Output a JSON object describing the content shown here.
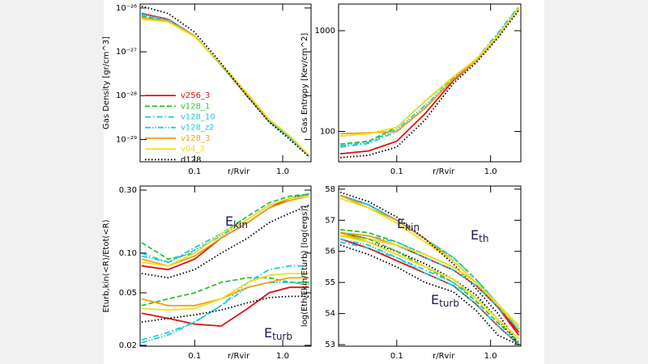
{
  "chart_data": [
    {
      "type": "line",
      "xlabel": "r/Rvir",
      "ylabel": "Gas Density [gr/cm^3]",
      "log_x": true,
      "log_y": true,
      "xlim": [
        0.024,
        2.1
      ],
      "xticks": [
        0.1,
        {
          "value": 1,
          "label": "1.0"
        }
      ],
      "ylim": [
        3.1e-30,
        1.23e-26
      ],
      "yticks": [
        {
          "value": 1e-26,
          "label": "10⁻²⁶"
        },
        {
          "value": 1e-27,
          "label": "10⁻²⁷"
        },
        {
          "value": 1e-28,
          "label": "10⁻²⁸"
        },
        {
          "value": 1e-29,
          "label": "10⁻²⁹"
        }
      ],
      "legend": "center-left",
      "x": [
        0.025,
        0.05,
        0.1,
        0.2,
        0.4,
        0.7,
        1.2,
        2.0
      ],
      "series": [
        {
          "name": "v256_3",
          "color": "#e01010",
          "dash": "solid",
          "values": [
            7.5e-27,
            5.5e-27,
            2.3e-27,
            5e-28,
            9.5e-29,
            2.6e-29,
            1.1e-29,
            4.2e-30
          ]
        },
        {
          "name": "v128_1",
          "color": "#30c030",
          "dash": "dashed",
          "values": [
            6.5e-27,
            5.2e-27,
            2.3e-27,
            5e-28,
            1e-28,
            2.8e-29,
            1.1e-29,
            4.2e-30
          ]
        },
        {
          "name": "v128_10",
          "color": "#20c8e0",
          "dash": "dashdot",
          "values": [
            7e-27,
            5.3e-27,
            2.3e-27,
            5e-28,
            9.5e-29,
            2.7e-29,
            1.1e-29,
            4.1e-30
          ]
        },
        {
          "name": "v128_z2",
          "color": "#20c8e0",
          "dash": "dashdotdot",
          "values": [
            7.2e-27,
            5.4e-27,
            2.3e-27,
            5e-28,
            9.5e-29,
            2.6e-29,
            1.1e-29,
            4.2e-30
          ]
        },
        {
          "name": "v128_3",
          "color": "#f0a010",
          "dash": "solid",
          "values": [
            6e-27,
            5e-27,
            2.3e-27,
            5.2e-28,
            1e-28,
            2.8e-29,
            1.2e-29,
            4.3e-30
          ]
        },
        {
          "name": "v64_3",
          "color": "#f0e020",
          "dash": "solid",
          "values": [
            5.5e-27,
            4.8e-27,
            2.2e-27,
            5.2e-28,
            1.1e-28,
            2.9e-29,
            1.2e-29,
            4.3e-30
          ]
        },
        {
          "name": "d128",
          "color": "#000000",
          "dash": "dotted",
          "values": [
            1.1e-26,
            7.5e-27,
            2.8e-27,
            5.5e-28,
            9.5e-29,
            2.5e-29,
            1e-29,
            4e-30
          ]
        }
      ]
    },
    {
      "type": "line",
      "xlabel": "r/Rvir",
      "ylabel": "Gas Entropy [Kev/cm^2]",
      "log_x": true,
      "log_y": true,
      "xlim": [
        0.024,
        2.1
      ],
      "xticks": [
        0.1,
        {
          "value": 1,
          "label": "1.0"
        }
      ],
      "ylim": [
        50,
        1840
      ],
      "yticks": [
        100,
        1000
      ],
      "x": [
        0.025,
        0.05,
        0.1,
        0.2,
        0.4,
        0.7,
        1.2,
        2.0
      ],
      "series": [
        {
          "color": "#e01010",
          "dash": "solid",
          "values": [
            60,
            64,
            80,
            150,
            320,
            500,
            880,
            1700
          ]
        },
        {
          "color": "#30c030",
          "dash": "dashed",
          "values": [
            75,
            80,
            110,
            200,
            340,
            510,
            900,
            1650
          ]
        },
        {
          "color": "#20c8e0",
          "dash": "dashdot",
          "values": [
            70,
            76,
            100,
            170,
            330,
            520,
            950,
            1750
          ]
        },
        {
          "color": "#20c8e0",
          "dash": "dashdotdot",
          "values": [
            72,
            78,
            105,
            180,
            330,
            510,
            920,
            1700
          ]
        },
        {
          "color": "#f0a010",
          "dash": "solid",
          "values": [
            95,
            97,
            100,
            170,
            330,
            500,
            880,
            1700
          ]
        },
        {
          "color": "#f0e020",
          "dash": "solid",
          "values": [
            90,
            95,
            110,
            200,
            350,
            520,
            900,
            1680
          ]
        },
        {
          "color": "#000000",
          "dash": "dotted",
          "values": [
            55,
            58,
            70,
            130,
            300,
            480,
            850,
            1600
          ]
        }
      ]
    },
    {
      "type": "line",
      "xlabel": "r/Rvir",
      "ylabel": "Eturb,kin(<R)/Etot(<R)",
      "log_x": true,
      "log_y": true,
      "xlim": [
        0.024,
        2.1
      ],
      "xticks": [
        0.1,
        {
          "value": 1,
          "label": "1.0"
        }
      ],
      "ylim": [
        0.0197,
        0.322
      ],
      "yticks": [
        {
          "value": 0.3,
          "label": "0.30"
        },
        {
          "value": 0.1,
          "label": "0.10"
        },
        0.05,
        0.02
      ],
      "annotations": [
        {
          "text": "E",
          "sub": "kin"
        },
        {
          "text": "E",
          "sub": "turb"
        }
      ],
      "x": [
        0.025,
        0.05,
        0.1,
        0.2,
        0.4,
        0.7,
        1.2,
        2.0
      ],
      "series": [
        {
          "color": "#e01010",
          "dash": "solid",
          "values": [
            0.08,
            0.075,
            0.09,
            0.13,
            0.17,
            0.22,
            0.26,
            0.28
          ]
        },
        {
          "color": "#30c030",
          "dash": "dashed",
          "values": [
            0.12,
            0.09,
            0.1,
            0.14,
            0.19,
            0.24,
            0.27,
            0.28
          ]
        },
        {
          "color": "#20c8e0",
          "dash": "dashdot",
          "values": [
            0.1,
            0.085,
            0.11,
            0.14,
            0.18,
            0.23,
            0.26,
            0.28
          ]
        },
        {
          "color": "#20c8e0",
          "dash": "dashdotdot",
          "values": [
            0.095,
            0.085,
            0.105,
            0.135,
            0.18,
            0.23,
            0.26,
            0.27
          ]
        },
        {
          "color": "#f0a010",
          "dash": "solid",
          "values": [
            0.09,
            0.08,
            0.095,
            0.13,
            0.17,
            0.22,
            0.25,
            0.27
          ]
        },
        {
          "color": "#f0e020",
          "dash": "solid",
          "values": [
            0.085,
            0.08,
            0.1,
            0.14,
            0.18,
            0.23,
            0.26,
            0.27
          ]
        },
        {
          "color": "#000000",
          "dash": "dotted",
          "values": [
            0.07,
            0.065,
            0.075,
            0.1,
            0.13,
            0.17,
            0.2,
            0.23
          ]
        },
        {
          "color": "#e01010",
          "dash": "solid",
          "values": [
            0.035,
            0.032,
            0.029,
            0.028,
            0.038,
            0.05,
            0.055,
            0.055
          ]
        },
        {
          "color": "#30c030",
          "dash": "dashed",
          "values": [
            0.04,
            0.045,
            0.05,
            0.06,
            0.065,
            0.065,
            0.06,
            0.06
          ]
        },
        {
          "color": "#20c8e0",
          "dash": "dashdot",
          "values": [
            0.022,
            0.025,
            0.03,
            0.04,
            0.06,
            0.075,
            0.08,
            0.08
          ]
        },
        {
          "color": "#20c8e0",
          "dash": "dashdotdot",
          "values": [
            0.021,
            0.024,
            0.03,
            0.04,
            0.055,
            0.06,
            0.06,
            0.058
          ]
        },
        {
          "color": "#f0a010",
          "dash": "solid",
          "values": [
            0.045,
            0.04,
            0.04,
            0.045,
            0.055,
            0.06,
            0.065,
            0.065
          ]
        },
        {
          "color": "#f0e020",
          "dash": "solid",
          "values": [
            0.038,
            0.037,
            0.038,
            0.045,
            0.06,
            0.068,
            0.07,
            0.07
          ]
        },
        {
          "color": "#000000",
          "dash": "dotted",
          "values": [
            0.03,
            0.032,
            0.034,
            0.037,
            0.042,
            0.046,
            0.047,
            0.047
          ]
        }
      ]
    },
    {
      "type": "line",
      "xlabel": "r/Rvir",
      "ylabel": "log(Eth/Ekin/Eturb) [log(ergs)]",
      "log_x": true,
      "log_y": false,
      "xlim": [
        0.024,
        2.1
      ],
      "xticks": [
        0.1,
        {
          "value": 1,
          "label": "1.0"
        }
      ],
      "ylim": [
        52.95,
        58.1
      ],
      "yticks": [
        53,
        54,
        55,
        56,
        57,
        58
      ],
      "annotations": [
        {
          "text": "E",
          "sub": "kin"
        },
        {
          "text": "E",
          "sub": "th"
        },
        {
          "text": "E",
          "sub": "turb"
        }
      ],
      "x": [
        0.025,
        0.05,
        0.1,
        0.2,
        0.4,
        0.7,
        1.2,
        2.0
      ],
      "series": [
        {
          "color": "#e01010",
          "dash": "solid",
          "values": [
            57.8,
            57.5,
            57.0,
            56.4,
            55.7,
            55.0,
            54.2,
            53.3
          ]
        },
        {
          "color": "#30c030",
          "dash": "dashed",
          "values": [
            57.8,
            57.5,
            57.0,
            56.4,
            55.8,
            55.1,
            54.3,
            53.4
          ]
        },
        {
          "color": "#20c8e0",
          "dash": "dashdot",
          "values": [
            57.8,
            57.5,
            57.0,
            56.4,
            55.8,
            55.1,
            54.3,
            53.5
          ]
        },
        {
          "color": "#20c8e0",
          "dash": "dashdotdot",
          "values": [
            57.8,
            57.5,
            57.0,
            56.4,
            55.7,
            55.0,
            54.2,
            53.4
          ]
        },
        {
          "color": "#f0a010",
          "dash": "solid",
          "values": [
            57.8,
            57.4,
            57.0,
            56.4,
            55.7,
            55.0,
            54.2,
            53.4
          ]
        },
        {
          "color": "#f0e020",
          "dash": "solid",
          "values": [
            57.7,
            57.4,
            56.9,
            56.3,
            55.7,
            55.0,
            54.3,
            53.5
          ]
        },
        {
          "color": "#000000",
          "dash": "dotted",
          "values": [
            57.9,
            57.6,
            57.1,
            56.4,
            55.6,
            54.8,
            54.0,
            53.0
          ]
        },
        {
          "color": "#e01010",
          "dash": "solid",
          "values": [
            56.6,
            56.4,
            56.2,
            55.8,
            55.4,
            54.9,
            54.2,
            53.4
          ]
        },
        {
          "color": "#30c030",
          "dash": "dashed",
          "values": [
            56.7,
            56.6,
            56.3,
            55.9,
            55.5,
            55.0,
            54.3,
            53.6
          ]
        },
        {
          "color": "#20c8e0",
          "dash": "dashdot",
          "values": [
            56.6,
            56.5,
            56.3,
            55.9,
            55.5,
            55.0,
            54.3,
            53.6
          ]
        },
        {
          "color": "#20c8e0",
          "dash": "dashdotdot",
          "values": [
            56.6,
            56.5,
            56.2,
            55.8,
            55.4,
            54.9,
            54.2,
            53.5
          ]
        },
        {
          "color": "#f0a010",
          "dash": "solid",
          "values": [
            56.6,
            56.5,
            56.2,
            55.9,
            55.5,
            55.0,
            54.3,
            53.6
          ]
        },
        {
          "color": "#f0e020",
          "dash": "solid",
          "values": [
            56.5,
            56.4,
            56.2,
            55.9,
            55.5,
            55.0,
            54.3,
            53.6
          ]
        },
        {
          "color": "#000000",
          "dash": "dotted",
          "values": [
            56.5,
            56.3,
            56.0,
            55.6,
            55.1,
            54.6,
            53.8,
            53.0
          ]
        },
        {
          "color": "#e01010",
          "dash": "solid",
          "values": [
            56.4,
            56.1,
            55.7,
            55.3,
            54.9,
            54.3,
            53.6,
            53.0
          ]
        },
        {
          "color": "#30c030",
          "dash": "dashed",
          "values": [
            56.6,
            56.4,
            56.0,
            55.5,
            55.0,
            54.4,
            53.7,
            53.1
          ]
        },
        {
          "color": "#20c8e0",
          "dash": "dashdot",
          "values": [
            56.3,
            56.1,
            55.8,
            55.4,
            55.0,
            54.5,
            53.8,
            53.2
          ]
        },
        {
          "color": "#20c8e0",
          "dash": "dashdotdot",
          "values": [
            56.4,
            56.2,
            55.8,
            55.3,
            54.9,
            54.3,
            53.6,
            53.0
          ]
        },
        {
          "color": "#f0a010",
          "dash": "solid",
          "values": [
            56.6,
            56.3,
            55.9,
            55.5,
            55.1,
            54.5,
            53.8,
            53.2
          ]
        },
        {
          "color": "#f0e020",
          "dash": "solid",
          "values": [
            56.5,
            56.3,
            55.9,
            55.5,
            55.1,
            54.5,
            53.8,
            53.2
          ]
        },
        {
          "color": "#000000",
          "dash": "dotted",
          "values": [
            56.2,
            55.9,
            55.5,
            55.0,
            54.7,
            54.1,
            53.3,
            53.0
          ]
        }
      ]
    }
  ]
}
